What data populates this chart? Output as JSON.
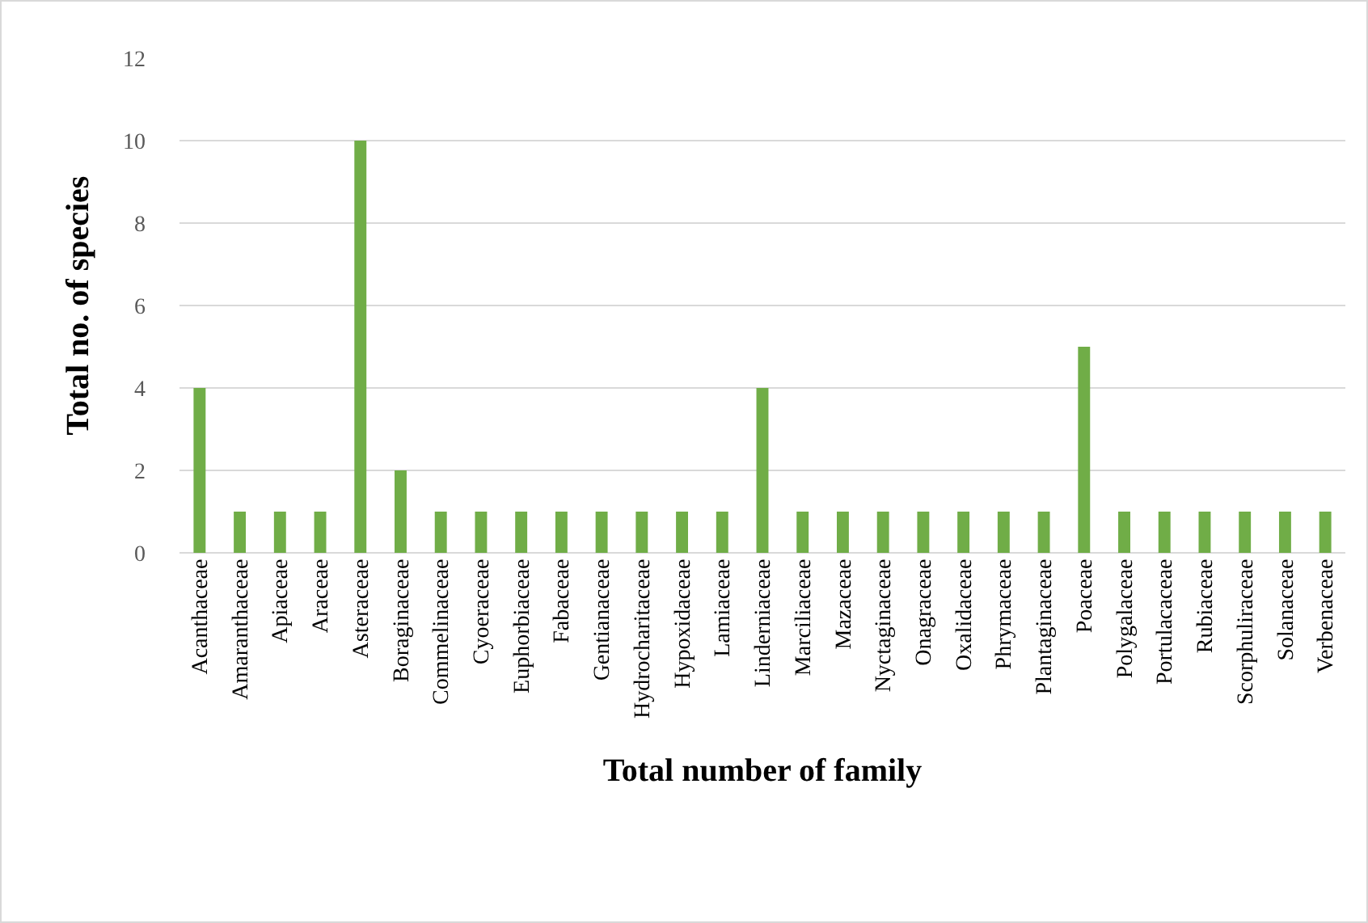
{
  "chart_data": {
    "type": "bar",
    "xlabel": "Total number of family",
    "ylabel": "Total no. of species",
    "categories": [
      "Acanthaceae",
      "Amaranthaceae",
      "Apiaceae",
      "Araceae",
      "Asteraceae",
      "Boraginaceae",
      "Commelinaceae",
      "Cyoeraceae",
      "Euphorbiaceae",
      "Fabaceae",
      "Gentianaceae",
      "Hydrocharitaceae",
      "Hypoxidaceae",
      "Lamiaceae",
      "Linderniaceae",
      "Marciliaceae",
      "Mazaceae",
      "Nyctaginaceae",
      "Onagraceae",
      "Oxalidaceae",
      "Phrymaceae",
      "Plantaginaceae",
      "Poaceae",
      "Polygalaceae",
      "Portulacaceae",
      "Rubiaceae",
      "Scorphuliraceae",
      "Solanaceae",
      "Verbenaceae"
    ],
    "values": [
      4,
      1,
      1,
      1,
      10,
      2,
      1,
      1,
      1,
      1,
      1,
      1,
      1,
      1,
      4,
      1,
      1,
      1,
      1,
      1,
      1,
      1,
      5,
      1,
      1,
      1,
      1,
      1,
      1
    ],
    "color": "#70ad47",
    "ylim": [
      0,
      12
    ],
    "yticks": [
      0,
      2,
      4,
      6,
      8,
      10,
      12
    ],
    "grid": "y"
  }
}
